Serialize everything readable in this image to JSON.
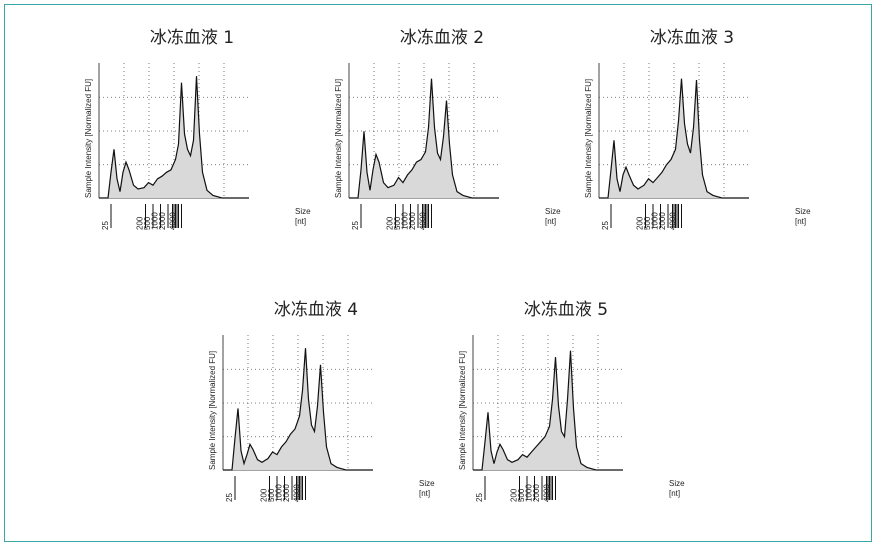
{
  "chart_data": [
    {
      "type": "area",
      "title": "冰冻血液 1",
      "ylabel": "Sample Intensity [Normalized FU]",
      "xlabel": "Size\n[nt]",
      "x_ticks": [
        "25",
        "200",
        "500",
        "1000",
        "2000",
        "4000"
      ],
      "series": [
        {
          "values": [
            [
              0,
              0
            ],
            [
              6,
              0
            ],
            [
              8,
              0.2
            ],
            [
              10,
              0.38
            ],
            [
              12,
              0.15
            ],
            [
              14,
              0.05
            ],
            [
              16,
              0.2
            ],
            [
              18,
              0.28
            ],
            [
              20,
              0.22
            ],
            [
              23,
              0.1
            ],
            [
              26,
              0.07
            ],
            [
              30,
              0.08
            ],
            [
              33,
              0.12
            ],
            [
              36,
              0.1
            ],
            [
              39,
              0.15
            ],
            [
              42,
              0.17
            ],
            [
              45,
              0.2
            ],
            [
              48,
              0.22
            ],
            [
              51,
              0.3
            ],
            [
              53,
              0.42
            ],
            [
              55,
              0.9
            ],
            [
              57,
              0.5
            ],
            [
              59,
              0.38
            ],
            [
              61,
              0.33
            ],
            [
              63,
              0.45
            ],
            [
              65,
              0.95
            ],
            [
              67,
              0.5
            ],
            [
              69,
              0.2
            ],
            [
              72,
              0.06
            ],
            [
              76,
              0.02
            ],
            [
              82,
              0.0
            ],
            [
              100,
              0.0
            ]
          ]
        }
      ]
    },
    {
      "type": "area",
      "title": "冰冻血液 2",
      "ylabel": "Sample Intensity [Normalized FU]",
      "xlabel": "Size\n[nt]",
      "x_ticks": [
        "25",
        "200",
        "500",
        "1000",
        "2000",
        "4000"
      ],
      "series": [
        {
          "values": [
            [
              0,
              0
            ],
            [
              6,
              0
            ],
            [
              8,
              0.22
            ],
            [
              10,
              0.52
            ],
            [
              12,
              0.2
            ],
            [
              14,
              0.06
            ],
            [
              16,
              0.22
            ],
            [
              18,
              0.34
            ],
            [
              20,
              0.28
            ],
            [
              23,
              0.12
            ],
            [
              26,
              0.08
            ],
            [
              30,
              0.1
            ],
            [
              33,
              0.16
            ],
            [
              36,
              0.12
            ],
            [
              39,
              0.18
            ],
            [
              42,
              0.22
            ],
            [
              45,
              0.28
            ],
            [
              48,
              0.3
            ],
            [
              51,
              0.36
            ],
            [
              53,
              0.55
            ],
            [
              55,
              0.93
            ],
            [
              57,
              0.55
            ],
            [
              59,
              0.35
            ],
            [
              61,
              0.3
            ],
            [
              63,
              0.48
            ],
            [
              65,
              0.76
            ],
            [
              67,
              0.42
            ],
            [
              69,
              0.18
            ],
            [
              72,
              0.05
            ],
            [
              76,
              0.02
            ],
            [
              82,
              0.0
            ],
            [
              100,
              0.0
            ]
          ]
        }
      ]
    },
    {
      "type": "area",
      "title": "冰冻血液 3",
      "ylabel": "Sample Intensity [Normalized FU]",
      "xlabel": "Size\n[nt]",
      "x_ticks": [
        "25",
        "200",
        "500",
        "1000",
        "2000",
        "4000"
      ],
      "series": [
        {
          "values": [
            [
              0,
              0
            ],
            [
              6,
              0
            ],
            [
              8,
              0.22
            ],
            [
              10,
              0.45
            ],
            [
              12,
              0.15
            ],
            [
              14,
              0.05
            ],
            [
              16,
              0.18
            ],
            [
              18,
              0.24
            ],
            [
              20,
              0.18
            ],
            [
              23,
              0.1
            ],
            [
              26,
              0.07
            ],
            [
              30,
              0.1
            ],
            [
              33,
              0.15
            ],
            [
              36,
              0.12
            ],
            [
              39,
              0.16
            ],
            [
              42,
              0.2
            ],
            [
              45,
              0.26
            ],
            [
              48,
              0.3
            ],
            [
              51,
              0.38
            ],
            [
              53,
              0.6
            ],
            [
              55,
              0.93
            ],
            [
              57,
              0.58
            ],
            [
              59,
              0.42
            ],
            [
              61,
              0.35
            ],
            [
              63,
              0.55
            ],
            [
              65,
              0.92
            ],
            [
              67,
              0.45
            ],
            [
              69,
              0.18
            ],
            [
              72,
              0.05
            ],
            [
              76,
              0.02
            ],
            [
              82,
              0.0
            ],
            [
              100,
              0.0
            ]
          ]
        }
      ]
    },
    {
      "type": "area",
      "title": "冰冻血液 4",
      "ylabel": "Sample Intensity [Normalized FU]",
      "xlabel": "Size\n[nt]",
      "x_ticks": [
        "25",
        "200",
        "500",
        "1000",
        "2000",
        "4000"
      ],
      "series": [
        {
          "values": [
            [
              0,
              0
            ],
            [
              6,
              0
            ],
            [
              8,
              0.25
            ],
            [
              10,
              0.48
            ],
            [
              12,
              0.15
            ],
            [
              14,
              0.05
            ],
            [
              16,
              0.12
            ],
            [
              18,
              0.2
            ],
            [
              20,
              0.16
            ],
            [
              23,
              0.08
            ],
            [
              26,
              0.06
            ],
            [
              30,
              0.09
            ],
            [
              33,
              0.14
            ],
            [
              36,
              0.12
            ],
            [
              39,
              0.18
            ],
            [
              42,
              0.22
            ],
            [
              45,
              0.28
            ],
            [
              48,
              0.32
            ],
            [
              51,
              0.42
            ],
            [
              53,
              0.62
            ],
            [
              55,
              0.95
            ],
            [
              57,
              0.55
            ],
            [
              59,
              0.35
            ],
            [
              61,
              0.3
            ],
            [
              63,
              0.5
            ],
            [
              65,
              0.82
            ],
            [
              67,
              0.45
            ],
            [
              69,
              0.18
            ],
            [
              72,
              0.05
            ],
            [
              76,
              0.02
            ],
            [
              82,
              0.0
            ],
            [
              100,
              0.0
            ]
          ]
        }
      ]
    },
    {
      "type": "area",
      "title": "冰冻血液 5",
      "ylabel": "Sample Intensity [Normalized FU]",
      "xlabel": "Size\n[nt]",
      "x_ticks": [
        "25",
        "200",
        "500",
        "1000",
        "2000",
        "4000"
      ],
      "series": [
        {
          "values": [
            [
              0,
              0
            ],
            [
              6,
              0
            ],
            [
              8,
              0.22
            ],
            [
              10,
              0.45
            ],
            [
              12,
              0.15
            ],
            [
              14,
              0.05
            ],
            [
              16,
              0.14
            ],
            [
              18,
              0.2
            ],
            [
              20,
              0.16
            ],
            [
              23,
              0.08
            ],
            [
              26,
              0.06
            ],
            [
              30,
              0.08
            ],
            [
              33,
              0.12
            ],
            [
              36,
              0.1
            ],
            [
              39,
              0.14
            ],
            [
              42,
              0.18
            ],
            [
              45,
              0.22
            ],
            [
              48,
              0.26
            ],
            [
              51,
              0.34
            ],
            [
              53,
              0.55
            ],
            [
              55,
              0.88
            ],
            [
              57,
              0.5
            ],
            [
              59,
              0.3
            ],
            [
              61,
              0.26
            ],
            [
              63,
              0.55
            ],
            [
              65,
              0.93
            ],
            [
              67,
              0.48
            ],
            [
              69,
              0.18
            ],
            [
              72,
              0.05
            ],
            [
              76,
              0.02
            ],
            [
              82,
              0.0
            ],
            [
              100,
              0.0
            ]
          ]
        }
      ]
    }
  ]
}
